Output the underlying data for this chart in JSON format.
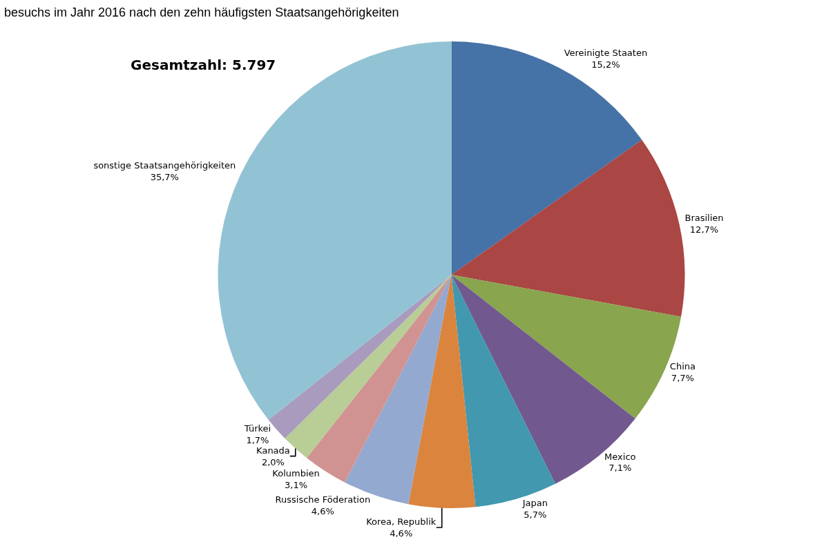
{
  "chart_data": {
    "type": "pie",
    "title": "besuchs im Jahr 2016 nach den zehn häufigsten Staatsangehörigkeiten",
    "annotations": [
      "Gesamtzahl: 5.797"
    ],
    "categories": [
      "Vereinigte Staaten",
      "Brasilien",
      "China",
      "Mexico",
      "Japan",
      "Korea, Republik",
      "Russische Föderation",
      "Kolumbien",
      "Kanada",
      "Türkei",
      "sonstige Staatsangehörigkeiten"
    ],
    "values": [
      15.2,
      12.7,
      7.7,
      7.1,
      5.7,
      4.6,
      4.6,
      3.1,
      2.0,
      1.7,
      35.7
    ],
    "value_labels": [
      "15,2%",
      "12,7%",
      "7,7%",
      "7,1%",
      "5,7%",
      "4,6%",
      "4,6%",
      "3,1%",
      "2,0%",
      "1,7%",
      "35,7%"
    ],
    "colors": [
      "#4572a7",
      "#aa4643",
      "#89a54e",
      "#71588f",
      "#4198af",
      "#db843d",
      "#93a9cf",
      "#d19392",
      "#b9cd96",
      "#a99bbd",
      "#92c3d4"
    ],
    "legend": false
  }
}
